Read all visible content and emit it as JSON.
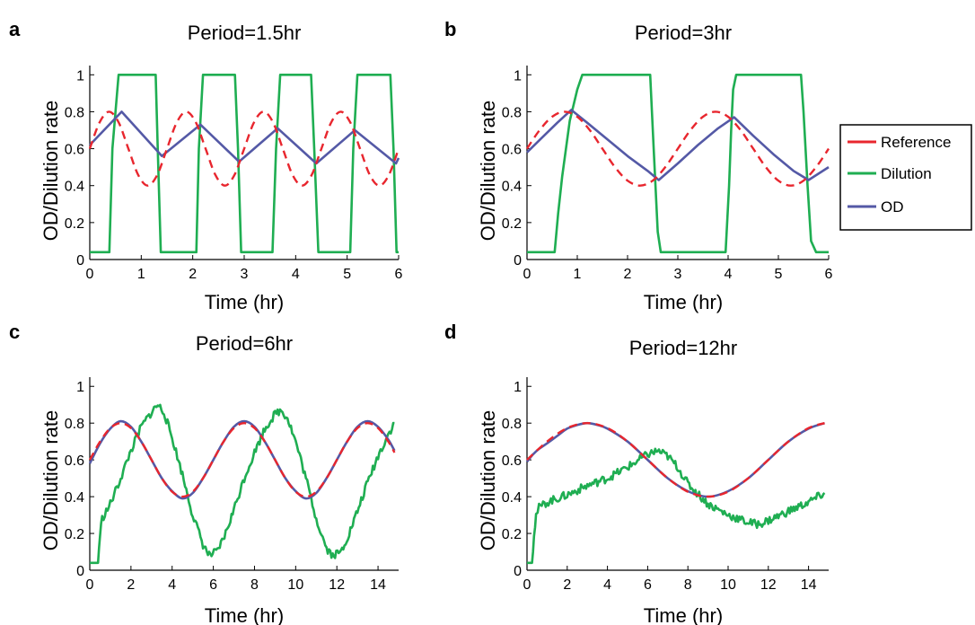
{
  "colors": {
    "reference": "#e8262e",
    "dilution": "#1fae52",
    "od": "#5459a6"
  },
  "legend": {
    "placement": "right",
    "items": [
      "Reference",
      "Dilution",
      "OD"
    ]
  },
  "chart_data": [
    {
      "panel": "a",
      "type": "line",
      "title": "Period=1.5hr",
      "xlabel": "Time  (hr)",
      "ylabel": "OD/Dilution rate",
      "xlim": [
        0,
        6
      ],
      "ylim": [
        0,
        1.05
      ],
      "xticks": [
        0,
        1,
        2,
        3,
        4,
        5,
        6
      ],
      "yticks": [
        0,
        0.2,
        0.4,
        0.6,
        0.8,
        1
      ],
      "series": [
        {
          "name": "Reference",
          "style": "dashed",
          "x": [
            0,
            0.1875,
            0.375,
            0.5625,
            0.75,
            0.9375,
            1.125,
            1.3125,
            1.5,
            1.6875,
            1.875,
            2.0625,
            2.25,
            2.4375,
            2.625,
            2.8125,
            3.0,
            3.1875,
            3.375,
            3.5625,
            3.75,
            3.9375,
            4.125,
            4.3125,
            4.5,
            4.6875,
            4.875,
            5.0625,
            5.25,
            5.4375,
            5.625,
            5.8125,
            6.0
          ],
          "y": [
            0.6,
            0.741,
            0.8,
            0.741,
            0.6,
            0.459,
            0.4,
            0.459,
            0.6,
            0.741,
            0.8,
            0.741,
            0.6,
            0.459,
            0.4,
            0.459,
            0.6,
            0.741,
            0.8,
            0.741,
            0.6,
            0.459,
            0.4,
            0.459,
            0.6,
            0.741,
            0.8,
            0.741,
            0.6,
            0.459,
            0.4,
            0.459,
            0.6
          ]
        },
        {
          "name": "Dilution",
          "style": "solid",
          "x": [
            0,
            0.38,
            0.44,
            0.56,
            0.62,
            1.28,
            1.32,
            1.38,
            1.42,
            2.07,
            2.12,
            2.2,
            2.24,
            2.82,
            2.88,
            2.94,
            3.0,
            3.55,
            3.62,
            3.7,
            3.76,
            4.3,
            4.36,
            4.44,
            4.5,
            5.06,
            5.12,
            5.2,
            5.26,
            5.84,
            5.9,
            5.96,
            6.0
          ],
          "y": [
            0.04,
            0.04,
            0.6,
            1.0,
            1.0,
            1.0,
            0.6,
            0.04,
            0.04,
            0.04,
            0.6,
            1.0,
            1.0,
            1.0,
            0.6,
            0.04,
            0.04,
            0.04,
            0.6,
            1.0,
            1.0,
            1.0,
            0.6,
            0.04,
            0.04,
            0.04,
            0.6,
            1.0,
            1.0,
            1.0,
            0.6,
            0.04,
            0.04
          ]
        },
        {
          "name": "OD",
          "style": "solid",
          "x": [
            0,
            0.62,
            1.4,
            2.15,
            2.9,
            3.65,
            4.4,
            5.15,
            5.95,
            6.0
          ],
          "y": [
            0.62,
            0.8,
            0.56,
            0.73,
            0.53,
            0.71,
            0.52,
            0.7,
            0.52,
            0.55
          ]
        }
      ]
    },
    {
      "panel": "b",
      "type": "line",
      "title": "Period=3hr",
      "xlabel": "Time  (hr)",
      "ylabel": "OD/Dilution rate",
      "xlim": [
        0,
        6
      ],
      "ylim": [
        0,
        1.05
      ],
      "xticks": [
        0,
        1,
        2,
        3,
        4,
        5,
        6
      ],
      "yticks": [
        0,
        0.2,
        0.4,
        0.6,
        0.8,
        1
      ],
      "series": [
        {
          "name": "Reference",
          "style": "dashed",
          "x": [
            0,
            0.25,
            0.5,
            0.75,
            1.0,
            1.25,
            1.5,
            1.75,
            2.0,
            2.25,
            2.5,
            2.75,
            3.0,
            3.25,
            3.5,
            3.75,
            4.0,
            4.25,
            4.5,
            4.75,
            5.0,
            5.25,
            5.5,
            5.75,
            6.0
          ],
          "y": [
            0.6,
            0.7,
            0.773,
            0.8,
            0.773,
            0.7,
            0.6,
            0.5,
            0.427,
            0.4,
            0.427,
            0.5,
            0.6,
            0.7,
            0.773,
            0.8,
            0.773,
            0.7,
            0.6,
            0.5,
            0.427,
            0.4,
            0.427,
            0.5,
            0.6
          ]
        },
        {
          "name": "Dilution",
          "style": "solid",
          "x": [
            0,
            0.55,
            0.62,
            0.7,
            0.85,
            1.0,
            1.1,
            1.3,
            2.45,
            2.52,
            2.6,
            2.66,
            3.95,
            4.02,
            4.06,
            4.1,
            4.16,
            4.3,
            5.45,
            5.5,
            5.58,
            5.65,
            5.75,
            6.0
          ],
          "y": [
            0.04,
            0.04,
            0.25,
            0.45,
            0.75,
            0.92,
            1.0,
            1.0,
            1.0,
            0.6,
            0.15,
            0.04,
            0.04,
            0.4,
            0.7,
            0.92,
            1.0,
            1.0,
            1.0,
            0.8,
            0.4,
            0.1,
            0.04,
            0.04
          ]
        },
        {
          "name": "OD",
          "style": "solid",
          "x": [
            0,
            0.3,
            0.6,
            0.88,
            1.2,
            1.6,
            2.0,
            2.4,
            2.62,
            3.0,
            3.4,
            3.8,
            4.12,
            4.5,
            4.9,
            5.3,
            5.6,
            6.0
          ],
          "y": [
            0.58,
            0.66,
            0.74,
            0.81,
            0.74,
            0.65,
            0.56,
            0.48,
            0.43,
            0.52,
            0.62,
            0.71,
            0.77,
            0.67,
            0.57,
            0.48,
            0.43,
            0.5
          ]
        }
      ]
    },
    {
      "panel": "c",
      "type": "line",
      "title": "Period=6hr",
      "xlabel": "Time  (hr)",
      "ylabel": "OD/Dilution rate",
      "xlim": [
        0,
        15
      ],
      "ylim": [
        0,
        1.05
      ],
      "xticks": [
        0,
        2,
        4,
        6,
        8,
        10,
        12,
        14
      ],
      "yticks": [
        0,
        0.2,
        0.4,
        0.6,
        0.8,
        1
      ],
      "series": [
        {
          "name": "Reference",
          "style": "dashed",
          "x": [
            0,
            0.5,
            1.0,
            1.5,
            2.0,
            2.5,
            3.0,
            3.5,
            4.0,
            4.5,
            5.0,
            5.5,
            6.0,
            6.5,
            7.0,
            7.5,
            8.0,
            8.5,
            9.0,
            9.5,
            10.0,
            10.5,
            11.0,
            11.5,
            12.0,
            12.5,
            13.0,
            13.5,
            14.0,
            14.5,
            14.8
          ],
          "y": [
            0.6,
            0.7,
            0.773,
            0.8,
            0.773,
            0.7,
            0.6,
            0.5,
            0.427,
            0.4,
            0.427,
            0.5,
            0.6,
            0.7,
            0.773,
            0.8,
            0.773,
            0.7,
            0.6,
            0.5,
            0.427,
            0.4,
            0.427,
            0.5,
            0.6,
            0.7,
            0.773,
            0.8,
            0.773,
            0.7,
            0.64
          ]
        },
        {
          "name": "Dilution",
          "style": "noisy",
          "x": [
            0,
            0.4,
            0.5,
            0.6,
            0.8,
            1.0,
            1.5,
            2.0,
            2.5,
            3.0,
            3.3,
            3.6,
            4.0,
            4.5,
            5.0,
            5.5,
            5.8,
            6.2,
            6.6,
            7.0,
            7.5,
            8.0,
            8.5,
            9.0,
            9.3,
            9.6,
            10.0,
            10.5,
            11.0,
            11.5,
            11.8,
            12.2,
            12.6,
            13.0,
            13.5,
            14.0,
            14.5,
            14.8
          ],
          "y": [
            0.04,
            0.04,
            0.2,
            0.28,
            0.32,
            0.36,
            0.5,
            0.65,
            0.78,
            0.86,
            0.9,
            0.86,
            0.72,
            0.52,
            0.3,
            0.14,
            0.08,
            0.1,
            0.2,
            0.33,
            0.5,
            0.64,
            0.77,
            0.85,
            0.87,
            0.83,
            0.7,
            0.5,
            0.28,
            0.12,
            0.08,
            0.1,
            0.2,
            0.32,
            0.48,
            0.62,
            0.74,
            0.8
          ]
        },
        {
          "name": "OD",
          "style": "solid",
          "x": [
            0,
            0.5,
            1.0,
            1.5,
            2.0,
            2.5,
            3.0,
            3.5,
            4.0,
            4.5,
            5.0,
            5.5,
            6.0,
            6.5,
            7.0,
            7.5,
            8.0,
            8.5,
            9.0,
            9.5,
            10.0,
            10.5,
            11.0,
            11.5,
            12.0,
            12.5,
            13.0,
            13.5,
            14.0,
            14.5,
            14.8
          ],
          "y": [
            0.58,
            0.69,
            0.77,
            0.81,
            0.78,
            0.7,
            0.6,
            0.5,
            0.43,
            0.39,
            0.42,
            0.5,
            0.6,
            0.7,
            0.78,
            0.81,
            0.78,
            0.7,
            0.6,
            0.5,
            0.43,
            0.39,
            0.42,
            0.5,
            0.6,
            0.7,
            0.78,
            0.81,
            0.78,
            0.71,
            0.65
          ]
        }
      ]
    },
    {
      "panel": "d",
      "type": "line",
      "title": "Period=12hr",
      "xlabel": "Time  (hr)",
      "ylabel": "OD/Dilution rate",
      "xlim": [
        0,
        15
      ],
      "ylim": [
        0,
        1.05
      ],
      "xticks": [
        0,
        2,
        4,
        6,
        8,
        10,
        12,
        14
      ],
      "yticks": [
        0,
        0.2,
        0.4,
        0.6,
        0.8,
        1
      ],
      "series": [
        {
          "name": "Reference",
          "style": "dashed",
          "x": [
            0,
            1.0,
            2.0,
            3.0,
            4.0,
            5.0,
            6.0,
            7.0,
            8.0,
            9.0,
            10.0,
            11.0,
            12.0,
            13.0,
            14.0,
            14.8
          ],
          "y": [
            0.6,
            0.7,
            0.773,
            0.8,
            0.773,
            0.7,
            0.6,
            0.5,
            0.427,
            0.4,
            0.427,
            0.5,
            0.6,
            0.7,
            0.773,
            0.8
          ]
        },
        {
          "name": "Dilution",
          "style": "noisy",
          "x": [
            0,
            0.25,
            0.35,
            0.45,
            0.6,
            1.0,
            2.0,
            3.0,
            4.0,
            5.0,
            6.0,
            6.5,
            7.0,
            7.5,
            8.0,
            9.0,
            10.0,
            11.0,
            11.5,
            12.0,
            13.0,
            14.0,
            14.8
          ],
          "y": [
            0.04,
            0.04,
            0.2,
            0.3,
            0.34,
            0.37,
            0.41,
            0.46,
            0.5,
            0.56,
            0.63,
            0.65,
            0.62,
            0.56,
            0.47,
            0.36,
            0.3,
            0.26,
            0.25,
            0.27,
            0.32,
            0.37,
            0.42
          ]
        },
        {
          "name": "OD",
          "style": "solid",
          "x": [
            0,
            0.3,
            0.6,
            1.0,
            1.5,
            2.0,
            2.5,
            3.0,
            3.5,
            4.0,
            5.0,
            6.0,
            7.0,
            8.0,
            9.0,
            10.0,
            11.0,
            12.0,
            13.0,
            14.0,
            14.8
          ],
          "y": [
            0.59,
            0.63,
            0.66,
            0.69,
            0.73,
            0.77,
            0.79,
            0.8,
            0.79,
            0.77,
            0.7,
            0.6,
            0.5,
            0.43,
            0.4,
            0.43,
            0.5,
            0.6,
            0.7,
            0.77,
            0.8
          ]
        }
      ]
    }
  ],
  "panels": [
    {
      "label": "a",
      "title": "Period=1.5hr",
      "xlabel": "Time  (hr)",
      "ylabel": "OD/Dilution rate"
    },
    {
      "label": "b",
      "title": "Period=3hr",
      "xlabel": "Time  (hr)",
      "ylabel": "OD/Dilution rate"
    },
    {
      "label": "c",
      "title": "Period=6hr",
      "xlabel": "Time  (hr)",
      "ylabel": "OD/Dilution rate"
    },
    {
      "label": "d",
      "title": "Period=12hr",
      "xlabel": "Time  (hr)",
      "ylabel": "OD/Dilution rate"
    }
  ]
}
